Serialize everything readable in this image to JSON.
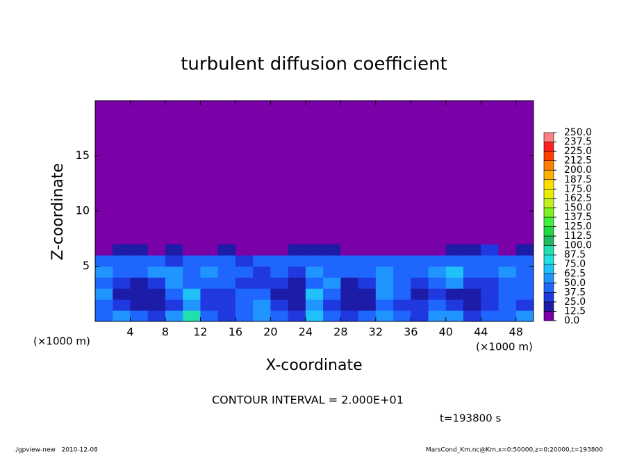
{
  "chart_data": {
    "type": "heatmap",
    "title": "turbulent diffusion coefficient",
    "xlabel": "X-coordinate",
    "ylabel": "Z-coordinate",
    "x_unit": "(×1000 m)",
    "xlim": [
      0,
      50
    ],
    "xticks": [
      4,
      8,
      12,
      16,
      20,
      24,
      28,
      32,
      36,
      40,
      44,
      48
    ],
    "ylim": [
      0,
      20
    ],
    "yticks": [
      5,
      10,
      15
    ],
    "xbins": [
      0,
      2,
      4,
      6,
      8,
      10,
      12,
      14,
      16,
      18,
      20,
      22,
      24,
      26,
      28,
      30,
      32,
      34,
      36,
      38,
      40,
      42,
      44,
      46,
      48,
      50
    ],
    "zbins": [
      0,
      1,
      2,
      3,
      4,
      5,
      6,
      7,
      20
    ],
    "z": [
      [
        45,
        60,
        40,
        30,
        55,
        90,
        40,
        30,
        45,
        60,
        40,
        35,
        70,
        40,
        35,
        45,
        60,
        40,
        35,
        50,
        60,
        35,
        45,
        40,
        50
      ],
      [
        40,
        25,
        20,
        20,
        35,
        60,
        30,
        25,
        40,
        50,
        30,
        20,
        60,
        35,
        20,
        20,
        40,
        35,
        25,
        40,
        30,
        20,
        25,
        40,
        35
      ],
      [
        50,
        20,
        15,
        20,
        40,
        70,
        25,
        35,
        45,
        40,
        20,
        15,
        70,
        40,
        15,
        15,
        50,
        40,
        20,
        30,
        20,
        15,
        30,
        40,
        45
      ],
      [
        45,
        30,
        20,
        30,
        50,
        45,
        40,
        45,
        35,
        35,
        25,
        20,
        45,
        50,
        20,
        25,
        50,
        45,
        30,
        40,
        60,
        25,
        35,
        45,
        40
      ],
      [
        50,
        45,
        40,
        50,
        60,
        45,
        55,
        45,
        40,
        35,
        40,
        35,
        55,
        45,
        40,
        45,
        55,
        40,
        45,
        50,
        70,
        45,
        40,
        50,
        45
      ],
      [
        45,
        40,
        45,
        40,
        35,
        40,
        45,
        40,
        35,
        40,
        45,
        40,
        40,
        40,
        40,
        40,
        45,
        40,
        40,
        40,
        45,
        45,
        40,
        40,
        45
      ],
      [
        0,
        15,
        20,
        0,
        20,
        0,
        0,
        15,
        0,
        0,
        0,
        20,
        20,
        15,
        0,
        0,
        0,
        0,
        0,
        0,
        20,
        20,
        25,
        10,
        20
      ],
      [
        0,
        0,
        0,
        0,
        0,
        0,
        0,
        0,
        0,
        0,
        0,
        0,
        0,
        0,
        0,
        0,
        0,
        0,
        0,
        0,
        0,
        0,
        0,
        0,
        0
      ]
    ],
    "colorbar": {
      "levels": [
        {
          "value": 0,
          "label": "0.0"
        },
        {
          "value": 12.5,
          "label": "12.5"
        },
        {
          "value": 25,
          "label": "25.0"
        },
        {
          "value": 37.5,
          "label": "37.5"
        },
        {
          "value": 50,
          "label": "50.0"
        },
        {
          "value": 62.5,
          "label": "62.5"
        },
        {
          "value": 75,
          "label": "75.0"
        },
        {
          "value": 87.5,
          "label": "87.5"
        },
        {
          "value": 100,
          "label": "100.0"
        },
        {
          "value": 112.5,
          "label": "112.5"
        },
        {
          "value": 125,
          "label": "125.0"
        },
        {
          "value": 137.5,
          "label": "137.5"
        },
        {
          "value": 150,
          "label": "150.0"
        },
        {
          "value": 162.5,
          "label": "162.5"
        },
        {
          "value": 175,
          "label": "175.0"
        },
        {
          "value": 187.5,
          "label": "187.5"
        },
        {
          "value": 200,
          "label": "200.0"
        },
        {
          "value": 212.5,
          "label": "212.5"
        },
        {
          "value": 225,
          "label": "225.0"
        },
        {
          "value": 237.5,
          "label": "237.5"
        },
        {
          "value": 250,
          "label": "250.0"
        }
      ],
      "colors": [
        "#7a00a8",
        "#1c1ca8",
        "#2038e0",
        "#1f66ff",
        "#2094ff",
        "#20c0f8",
        "#20e0e0",
        "#20e0b0",
        "#20b860",
        "#20d840",
        "#40f040",
        "#80f020",
        "#c0f020",
        "#e8f000",
        "#ffe000",
        "#ffb000",
        "#ff8000",
        "#ff4000",
        "#ff2020",
        "#ff8080"
      ]
    },
    "annotation": "CONTOUR INTERVAL = 2.000E+01",
    "time_label": "t=193800 s",
    "footer_left": "./gpview-new   2010-12-08",
    "footer_right": "MarsCond_Km.nc@Km,x=0:50000,z=0:20000,t=193800"
  }
}
